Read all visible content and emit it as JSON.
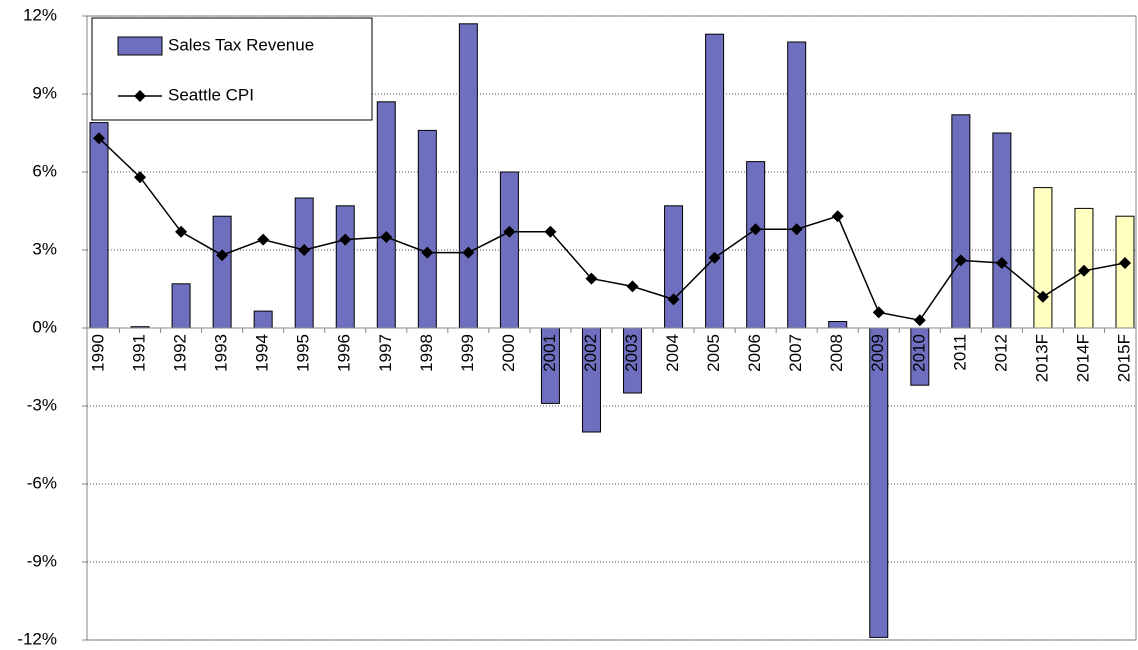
{
  "chart_data": {
    "type": "bar",
    "categories": [
      "1990",
      "1991",
      "1992",
      "1993",
      "1994",
      "1995",
      "1996",
      "1997",
      "1998",
      "1999",
      "2000",
      "2001",
      "2002",
      "2003",
      "2004",
      "2005",
      "2006",
      "2007",
      "2008",
      "2009",
      "2010",
      "2011",
      "2012",
      "2013F",
      "2014F",
      "2015F"
    ],
    "series": [
      {
        "name": "Sales Tax Revenue",
        "type": "bar",
        "color": "#6f6fbf",
        "colors": [
          "#6f6fbf",
          "#6f6fbf",
          "#6f6fbf",
          "#6f6fbf",
          "#6f6fbf",
          "#6f6fbf",
          "#6f6fbf",
          "#6f6fbf",
          "#6f6fbf",
          "#6f6fbf",
          "#6f6fbf",
          "#6f6fbf",
          "#6f6fbf",
          "#6f6fbf",
          "#6f6fbf",
          "#6f6fbf",
          "#6f6fbf",
          "#6f6fbf",
          "#6f6fbf",
          "#6f6fbf",
          "#6f6fbf",
          "#6f6fbf",
          "#6f6fbf",
          "#ffffc0",
          "#ffffc0",
          "#ffffc0"
        ],
        "values": [
          7.9,
          0.05,
          1.7,
          4.3,
          0.65,
          5.0,
          4.7,
          8.7,
          7.6,
          11.7,
          6.0,
          -2.9,
          -4.0,
          -2.5,
          4.7,
          11.3,
          6.4,
          11.0,
          0.25,
          -11.9,
          -2.2,
          8.2,
          7.5,
          5.4,
          4.6,
          4.3
        ]
      },
      {
        "name": "Seattle CPI",
        "type": "line",
        "color": "#000000",
        "values": [
          7.3,
          5.8,
          3.7,
          2.8,
          3.4,
          3.0,
          3.4,
          3.5,
          2.9,
          2.9,
          3.7,
          3.7,
          1.9,
          1.6,
          1.1,
          2.7,
          3.8,
          3.8,
          4.3,
          0.6,
          0.3,
          2.6,
          2.5,
          1.2,
          2.2,
          2.5
        ]
      }
    ],
    "ylim": [
      -12,
      12
    ],
    "yticks": [
      {
        "value": -12,
        "label": "-12%"
      },
      {
        "value": -9,
        "label": "-9%"
      },
      {
        "value": -6,
        "label": "-6%"
      },
      {
        "value": -3,
        "label": "-3%"
      },
      {
        "value": 0,
        "label": "0%"
      },
      {
        "value": 3,
        "label": "3%"
      },
      {
        "value": 6,
        "label": "6%"
      },
      {
        "value": 9,
        "label": "9%"
      },
      {
        "value": 12,
        "label": "12%"
      }
    ],
    "grid": true,
    "legend": "upper left"
  }
}
